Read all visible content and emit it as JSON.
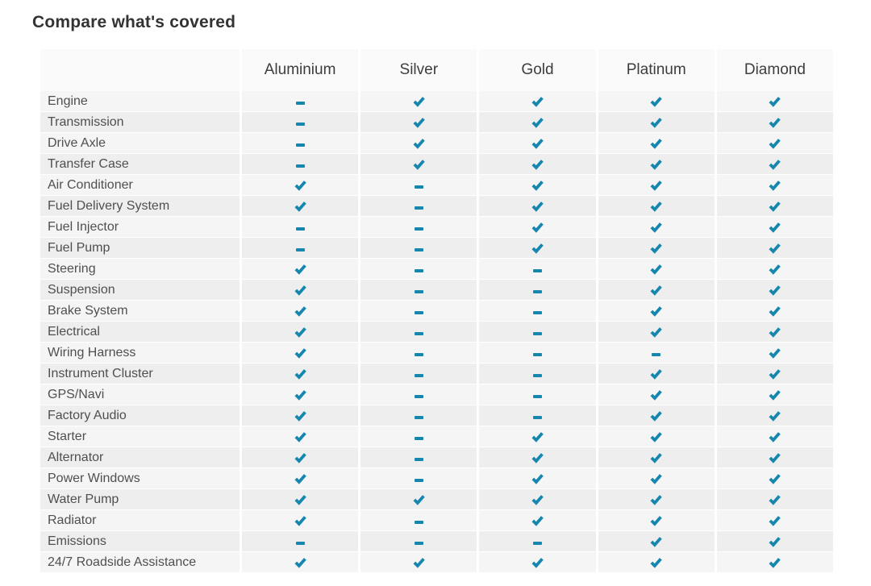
{
  "title": "Compare what's covered",
  "colors": {
    "accent": "#1586ad",
    "header_bg": "#fafafa",
    "row_odd_bg": "#f5f5f5",
    "row_even_bg": "#eeeeee",
    "label_text": "#4f4f4f",
    "header_text": "#3d3d3d",
    "title_text": "#333333"
  },
  "icons": {
    "check-icon": "✔",
    "dash-icon": "▬"
  },
  "table": {
    "columns": [
      "Aluminium",
      "Silver",
      "Gold",
      "Platinum",
      "Diamond"
    ],
    "rows": [
      {
        "label": "Engine",
        "cells": [
          "dash",
          "check",
          "check",
          "check",
          "check"
        ]
      },
      {
        "label": "Transmission",
        "cells": [
          "dash",
          "check",
          "check",
          "check",
          "check"
        ]
      },
      {
        "label": "Drive Axle",
        "cells": [
          "dash",
          "check",
          "check",
          "check",
          "check"
        ]
      },
      {
        "label": "Transfer Case",
        "cells": [
          "dash",
          "check",
          "check",
          "check",
          "check"
        ]
      },
      {
        "label": "Air Conditioner",
        "cells": [
          "check",
          "dash",
          "check",
          "check",
          "check"
        ]
      },
      {
        "label": "Fuel Delivery System",
        "cells": [
          "check",
          "dash",
          "check",
          "check",
          "check"
        ]
      },
      {
        "label": "Fuel Injector",
        "cells": [
          "dash",
          "dash",
          "check",
          "check",
          "check"
        ]
      },
      {
        "label": "Fuel Pump",
        "cells": [
          "dash",
          "dash",
          "check",
          "check",
          "check"
        ]
      },
      {
        "label": "Steering",
        "cells": [
          "check",
          "dash",
          "dash",
          "check",
          "check"
        ]
      },
      {
        "label": "Suspension",
        "cells": [
          "check",
          "dash",
          "dash",
          "check",
          "check"
        ]
      },
      {
        "label": "Brake System",
        "cells": [
          "check",
          "dash",
          "dash",
          "check",
          "check"
        ]
      },
      {
        "label": "Electrical",
        "cells": [
          "check",
          "dash",
          "dash",
          "check",
          "check"
        ]
      },
      {
        "label": "Wiring Harness",
        "cells": [
          "check",
          "dash",
          "dash",
          "dash",
          "check"
        ]
      },
      {
        "label": "Instrument Cluster",
        "cells": [
          "check",
          "dash",
          "dash",
          "check",
          "check"
        ]
      },
      {
        "label": "GPS/Navi",
        "cells": [
          "check",
          "dash",
          "dash",
          "check",
          "check"
        ]
      },
      {
        "label": "Factory Audio",
        "cells": [
          "check",
          "dash",
          "dash",
          "check",
          "check"
        ]
      },
      {
        "label": "Starter",
        "cells": [
          "check",
          "dash",
          "check",
          "check",
          "check"
        ]
      },
      {
        "label": "Alternator",
        "cells": [
          "check",
          "dash",
          "check",
          "check",
          "check"
        ]
      },
      {
        "label": "Power Windows",
        "cells": [
          "check",
          "dash",
          "check",
          "check",
          "check"
        ]
      },
      {
        "label": "Water Pump",
        "cells": [
          "check",
          "check",
          "check",
          "check",
          "check"
        ]
      },
      {
        "label": "Radiator",
        "cells": [
          "check",
          "dash",
          "check",
          "check",
          "check"
        ]
      },
      {
        "label": "Emissions",
        "cells": [
          "dash",
          "dash",
          "dash",
          "check",
          "check"
        ]
      },
      {
        "label": "24/7 Roadside Assistance",
        "cells": [
          "check",
          "check",
          "check",
          "check",
          "check"
        ]
      }
    ]
  }
}
